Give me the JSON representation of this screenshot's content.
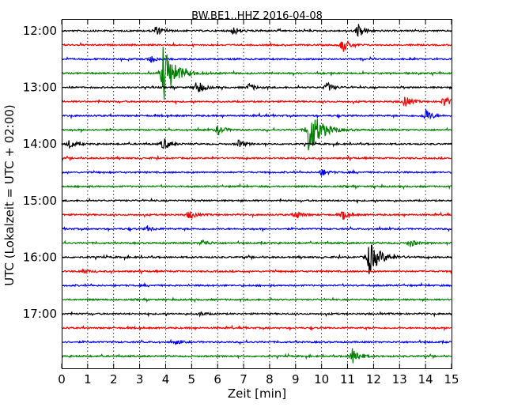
{
  "chart_data": {
    "type": "line",
    "title": "BW.BE1..HHZ 2016-04-08",
    "xlabel": "Zeit  [min]",
    "ylabel": "UTC (Lokalzeit = UTC + 02:00)",
    "xlim": [
      0,
      15
    ],
    "x_ticks": [
      "0",
      "1",
      "2",
      "3",
      "4",
      "5",
      "6",
      "7",
      "8",
      "9",
      "10",
      "11",
      "12",
      "13",
      "14",
      "15"
    ],
    "y_ticks": [
      "12:00",
      "13:00",
      "14:00",
      "15:00",
      "16:00",
      "17:00"
    ],
    "grid": "vertical dotted",
    "colors": [
      "#000000",
      "#ff0000",
      "#0000ff",
      "#008000"
    ],
    "series": [
      {
        "start": "12:00",
        "color": "#000000",
        "events": [
          {
            "t": 3.6,
            "amp": 0.35
          },
          {
            "t": 6.6,
            "amp": 0.35
          },
          {
            "t": 11.4,
            "amp": 0.6
          }
        ]
      },
      {
        "start": "12:15",
        "color": "#ff0000",
        "events": [
          {
            "t": 10.8,
            "amp": 0.6
          }
        ]
      },
      {
        "start": "12:30",
        "color": "#0000ff",
        "events": [
          {
            "t": 3.4,
            "amp": 0.25
          }
        ]
      },
      {
        "start": "12:45",
        "color": "#008000",
        "events": [
          {
            "t": 3.9,
            "amp": 2.2
          }
        ]
      },
      {
        "start": "13:00",
        "color": "#000000",
        "events": [
          {
            "t": 5.2,
            "amp": 0.6
          },
          {
            "t": 7.2,
            "amp": 0.3
          },
          {
            "t": 10.2,
            "amp": 0.4
          }
        ]
      },
      {
        "start": "13:15",
        "color": "#ff0000",
        "events": [
          {
            "t": 13.2,
            "amp": 0.45
          },
          {
            "t": 14.7,
            "amp": 0.45
          }
        ]
      },
      {
        "start": "13:30",
        "color": "#0000ff",
        "events": [
          {
            "t": 14.0,
            "amp": 0.55
          }
        ]
      },
      {
        "start": "13:45",
        "color": "#008000",
        "events": [
          {
            "t": 6.0,
            "amp": 0.4
          },
          {
            "t": 9.5,
            "amp": 2.0
          }
        ]
      },
      {
        "start": "14:00",
        "color": "#000000",
        "events": [
          {
            "t": 0.3,
            "amp": 0.35
          },
          {
            "t": 3.9,
            "amp": 0.55
          },
          {
            "t": 6.8,
            "amp": 0.3
          }
        ]
      },
      {
        "start": "14:15",
        "color": "#ff0000",
        "events": []
      },
      {
        "start": "14:30",
        "color": "#0000ff",
        "events": [
          {
            "t": 10.0,
            "amp": 0.3
          }
        ]
      },
      {
        "start": "14:45",
        "color": "#008000",
        "events": []
      },
      {
        "start": "15:00",
        "color": "#000000",
        "events": []
      },
      {
        "start": "15:15",
        "color": "#ff0000",
        "events": [
          {
            "t": 4.9,
            "amp": 0.35
          },
          {
            "t": 9.0,
            "amp": 0.35
          },
          {
            "t": 10.8,
            "amp": 0.35
          }
        ]
      },
      {
        "start": "15:30",
        "color": "#0000ff",
        "events": [
          {
            "t": 3.3,
            "amp": 0.2
          }
        ]
      },
      {
        "start": "15:45",
        "color": "#008000",
        "events": [
          {
            "t": 5.4,
            "amp": 0.3
          },
          {
            "t": 13.4,
            "amp": 0.3
          }
        ]
      },
      {
        "start": "16:00",
        "color": "#000000",
        "events": [
          {
            "t": 11.8,
            "amp": 1.3
          }
        ]
      },
      {
        "start": "16:15",
        "color": "#ff0000",
        "events": [
          {
            "t": 0.8,
            "amp": 0.15
          }
        ]
      },
      {
        "start": "16:30",
        "color": "#0000ff",
        "events": []
      },
      {
        "start": "16:45",
        "color": "#008000",
        "events": []
      },
      {
        "start": "17:00",
        "color": "#000000",
        "events": [
          {
            "t": 5.3,
            "amp": 0.15
          }
        ]
      },
      {
        "start": "17:15",
        "color": "#ff0000",
        "events": []
      },
      {
        "start": "17:30",
        "color": "#0000ff",
        "events": [
          {
            "t": 4.4,
            "amp": 0.15
          }
        ]
      },
      {
        "start": "17:45",
        "color": "#008000",
        "events": [
          {
            "t": 11.2,
            "amp": 0.8
          }
        ]
      }
    ]
  }
}
